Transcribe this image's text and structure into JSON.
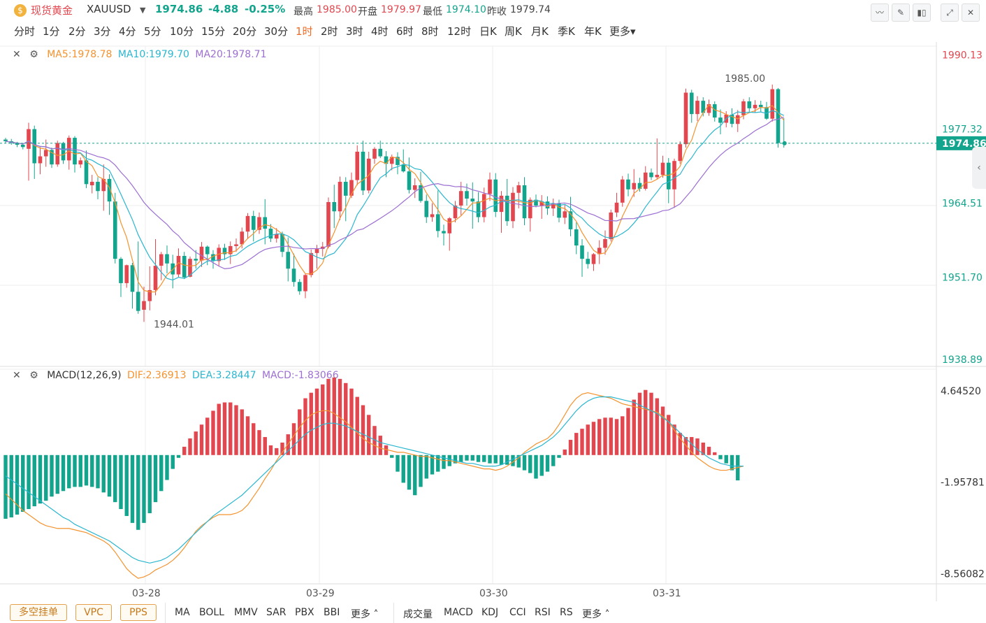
{
  "header": {
    "symbol_name": "现货黄金",
    "symbol_code": "XAUUSD",
    "price": "1974.86",
    "change": "-4.88",
    "change_pct": "-0.25%",
    "high_label": "最高",
    "high": "1985.00",
    "open_label": "开盘",
    "open": "1979.97",
    "low_label": "最低",
    "low": "1974.10",
    "prev_label": "昨收",
    "prev": "1979.74"
  },
  "periods": [
    "分时",
    "1分",
    "2分",
    "3分",
    "4分",
    "5分",
    "10分",
    "15分",
    "20分",
    "30分",
    "1时",
    "2时",
    "3时",
    "4时",
    "6时",
    "8时",
    "12时",
    "日K",
    "周K",
    "月K",
    "季K",
    "年K",
    "更多"
  ],
  "active_period": "1时",
  "main_legend": {
    "ma5": "MA5:1978.78",
    "ma10": "MA10:1979.70",
    "ma20": "MA20:1978.71"
  },
  "macd_legend": {
    "name": "MACD(12,26,9)",
    "dif": "DIF:2.36913",
    "dea": "DEA:3.28447",
    "macd": "MACD:-1.83066"
  },
  "price_axis": [
    "1990.13",
    "1977.32",
    "1964.51",
    "1951.70",
    "1938.89"
  ],
  "current_price_tag": "1974.86",
  "macd_axis": [
    "4.64520",
    "-1.95781",
    "-8.56082"
  ],
  "x_labels": [
    "03-28",
    "03-29",
    "03-30",
    "03-31"
  ],
  "annotations": {
    "high": "1985.00",
    "low": "1944.01"
  },
  "bottom": {
    "buttons": [
      "多空挂单",
      "VPC",
      "PPS"
    ],
    "main_indicators": [
      "MA",
      "BOLL",
      "MMV",
      "SAR",
      "PBX",
      "BBI",
      "更多"
    ],
    "sub_indicators": [
      "成交量",
      "MACD",
      "KDJ",
      "CCI",
      "RSI",
      "RS",
      "更多"
    ]
  },
  "colors": {
    "up": "#e2474f",
    "down": "#12a48c",
    "ma5": "#f4932f",
    "ma10": "#2bb6cf",
    "ma20": "#9c6fd1",
    "accent": "#f06a25"
  },
  "chart_data": {
    "type": "candlestick",
    "ylim": [
      1938.89,
      1990.13
    ],
    "candles": [
      [
        1975.5,
        1975.8,
        1974.9,
        1975.2
      ],
      [
        1975.2,
        1975.6,
        1974.6,
        1974.9
      ],
      [
        1974.9,
        1975.1,
        1974.2,
        1974.6
      ],
      [
        1974.6,
        1974.9,
        1973.8,
        1974.2
      ],
      [
        1973.9,
        1978.4,
        1968.4,
        1977.3
      ],
      [
        1977.3,
        1977.9,
        1968.7,
        1971.4
      ],
      [
        1971.4,
        1974.2,
        1969.5,
        1972.6
      ],
      [
        1972.6,
        1975.5,
        1970.8,
        1973.7
      ],
      [
        1973.7,
        1974.1,
        1970.6,
        1971.2
      ],
      [
        1971.2,
        1975.3,
        1970.8,
        1974.9
      ],
      [
        1974.9,
        1975.1,
        1971.3,
        1971.9
      ],
      [
        1971.9,
        1976.2,
        1970.3,
        1975.8
      ],
      [
        1975.8,
        1976.1,
        1969.8,
        1971.2
      ],
      [
        1971.2,
        1972.4,
        1970.6,
        1971.9
      ],
      [
        1971.9,
        1973.6,
        1967.1,
        1967.8
      ],
      [
        1967.6,
        1969.4,
        1966.2,
        1968.2
      ],
      [
        1968.2,
        1969.0,
        1965.2,
        1966.6
      ],
      [
        1966.6,
        1971.2,
        1963.2,
        1968.7
      ],
      [
        1968.7,
        1969.5,
        1962.5,
        1964.8
      ],
      [
        1964.8,
        1966.3,
        1954.1,
        1954.9
      ],
      [
        1954.9,
        1955.2,
        1948.3,
        1950.7
      ],
      [
        1950.7,
        1953.9,
        1949.9,
        1953.8
      ],
      [
        1953.8,
        1954.2,
        1946.3,
        1949.2
      ],
      [
        1949.2,
        1957.9,
        1945.4,
        1945.9
      ],
      [
        1946.1,
        1950.1,
        1944.0,
        1947.6
      ],
      [
        1947.6,
        1953.6,
        1946.0,
        1949.5
      ],
      [
        1949.5,
        1958.3,
        1948.6,
        1953.7
      ],
      [
        1953.7,
        1956.1,
        1951.2,
        1955.7
      ],
      [
        1955.7,
        1957.2,
        1952.4,
        1954.1
      ],
      [
        1954.1,
        1955.6,
        1949.8,
        1952.2
      ],
      [
        1952.2,
        1956.7,
        1951.7,
        1955.4
      ],
      [
        1955.4,
        1956.1,
        1951.4,
        1951.7
      ],
      [
        1951.8,
        1955.3,
        1951.7,
        1954.9
      ],
      [
        1954.9,
        1956.4,
        1953.2,
        1954.6
      ],
      [
        1954.6,
        1957.8,
        1953.5,
        1957.0
      ],
      [
        1957.0,
        1957.2,
        1953.8,
        1955.7
      ],
      [
        1955.7,
        1956.4,
        1953.2,
        1954.5
      ],
      [
        1954.5,
        1957.4,
        1953.6,
        1956.8
      ],
      [
        1956.8,
        1957.5,
        1954.7,
        1955.7
      ],
      [
        1955.7,
        1957.9,
        1954.0,
        1957.1
      ],
      [
        1957.1,
        1958.4,
        1956.1,
        1957.4
      ],
      [
        1957.4,
        1960.3,
        1956.7,
        1959.6
      ],
      [
        1959.6,
        1962.8,
        1958.3,
        1962.3
      ],
      [
        1962.3,
        1963.2,
        1957.9,
        1959.9
      ],
      [
        1959.9,
        1962.9,
        1959.2,
        1962.1
      ],
      [
        1962.1,
        1965.2,
        1957.4,
        1960.1
      ],
      [
        1960.1,
        1960.9,
        1957.8,
        1958.4
      ],
      [
        1958.4,
        1960.2,
        1957.7,
        1959.2
      ],
      [
        1959.2,
        1959.6,
        1955.2,
        1956.1
      ],
      [
        1956.1,
        1958.6,
        1951.0,
        1953.2
      ],
      [
        1953.2,
        1955.8,
        1950.1,
        1950.9
      ],
      [
        1950.9,
        1951.4,
        1948.7,
        1949.3
      ],
      [
        1949.3,
        1952.4,
        1948.1,
        1952.1
      ],
      [
        1952.1,
        1956.5,
        1951.7,
        1955.9
      ],
      [
        1955.9,
        1957.3,
        1953.2,
        1956.6
      ],
      [
        1956.6,
        1957.8,
        1955.3,
        1957.0
      ],
      [
        1957.0,
        1965.5,
        1956.7,
        1964.7
      ],
      [
        1964.7,
        1967.7,
        1960.2,
        1963.1
      ],
      [
        1963.1,
        1969.1,
        1961.6,
        1968.2
      ],
      [
        1968.2,
        1969.0,
        1961.4,
        1965.8
      ],
      [
        1965.8,
        1969.8,
        1965.4,
        1968.5
      ],
      [
        1968.5,
        1974.5,
        1967.6,
        1973.4
      ],
      [
        1973.4,
        1975.3,
        1965.9,
        1966.7
      ],
      [
        1966.7,
        1973.4,
        1966.2,
        1972.2
      ],
      [
        1972.2,
        1974.2,
        1971.3,
        1973.9
      ],
      [
        1973.9,
        1975.3,
        1972.3,
        1972.6
      ],
      [
        1972.6,
        1973.5,
        1969.0,
        1971.3
      ],
      [
        1971.3,
        1972.9,
        1970.2,
        1972.5
      ],
      [
        1972.5,
        1973.3,
        1969.5,
        1971.1
      ],
      [
        1971.1,
        1973.8,
        1969.8,
        1970.0
      ],
      [
        1970.0,
        1972.4,
        1966.2,
        1966.8
      ],
      [
        1966.8,
        1968.8,
        1965.4,
        1967.6
      ],
      [
        1967.6,
        1969.9,
        1964.6,
        1964.9
      ],
      [
        1964.9,
        1966.0,
        1961.1,
        1962.1
      ],
      [
        1962.1,
        1964.5,
        1961.3,
        1962.6
      ],
      [
        1962.6,
        1966.7,
        1958.6,
        1959.7
      ],
      [
        1959.7,
        1960.8,
        1957.2,
        1959.3
      ],
      [
        1959.3,
        1962.1,
        1956.3,
        1961.9
      ],
      [
        1961.9,
        1964.9,
        1961.2,
        1964.1
      ],
      [
        1964.1,
        1968.2,
        1962.4,
        1966.6
      ],
      [
        1966.6,
        1967.9,
        1964.1,
        1965.3
      ],
      [
        1965.3,
        1968.1,
        1960.1,
        1964.8
      ],
      [
        1964.8,
        1966.4,
        1961.2,
        1962.1
      ],
      [
        1962.1,
        1967.2,
        1961.2,
        1966.1
      ],
      [
        1966.1,
        1969.8,
        1964.9,
        1968.6
      ],
      [
        1968.6,
        1969.7,
        1962.1,
        1963.0
      ],
      [
        1963.0,
        1966.6,
        1959.4,
        1965.8
      ],
      [
        1965.8,
        1968.7,
        1960.6,
        1961.4
      ],
      [
        1961.4,
        1967.3,
        1960.2,
        1966.3
      ],
      [
        1966.3,
        1968.2,
        1963.6,
        1967.6
      ],
      [
        1967.6,
        1969.0,
        1960.7,
        1961.9
      ],
      [
        1961.9,
        1965.5,
        1959.6,
        1965.1
      ],
      [
        1965.1,
        1966.0,
        1963.8,
        1964.1
      ],
      [
        1964.1,
        1965.9,
        1961.8,
        1964.8
      ],
      [
        1964.8,
        1965.7,
        1962.5,
        1963.6
      ],
      [
        1963.6,
        1965.3,
        1962.3,
        1964.5
      ],
      [
        1964.5,
        1965.1,
        1961.2,
        1962.0
      ],
      [
        1962.0,
        1964.3,
        1960.9,
        1963.1
      ],
      [
        1963.1,
        1965.6,
        1958.8,
        1960.0
      ],
      [
        1960.0,
        1961.2,
        1955.7,
        1957.2
      ],
      [
        1957.2,
        1958.3,
        1951.8,
        1954.9
      ],
      [
        1954.9,
        1956.1,
        1953.2,
        1954.0
      ],
      [
        1954.0,
        1955.9,
        1952.8,
        1955.7
      ],
      [
        1955.7,
        1958.1,
        1954.0,
        1956.8
      ],
      [
        1956.8,
        1959.8,
        1955.6,
        1958.3
      ],
      [
        1958.3,
        1963.4,
        1957.9,
        1962.9
      ],
      [
        1962.9,
        1966.3,
        1962.1,
        1964.6
      ],
      [
        1964.6,
        1969.2,
        1963.9,
        1968.6
      ],
      [
        1968.6,
        1969.6,
        1965.7,
        1966.9
      ],
      [
        1966.9,
        1970.4,
        1965.6,
        1968.0
      ],
      [
        1968.0,
        1968.9,
        1966.5,
        1967.0
      ],
      [
        1967.0,
        1970.9,
        1966.7,
        1969.8
      ],
      [
        1969.8,
        1970.5,
        1968.5,
        1969.0
      ],
      [
        1969.0,
        1975.7,
        1968.6,
        1969.4
      ],
      [
        1969.4,
        1972.7,
        1968.9,
        1971.5
      ],
      [
        1971.5,
        1972.3,
        1964.5,
        1966.9
      ],
      [
        1966.9,
        1972.2,
        1963.7,
        1971.8
      ],
      [
        1971.8,
        1975.2,
        1971.3,
        1974.7
      ],
      [
        1974.7,
        1984.3,
        1974.1,
        1983.6
      ],
      [
        1983.6,
        1984.1,
        1978.4,
        1979.9
      ],
      [
        1979.9,
        1983.0,
        1978.7,
        1982.2
      ],
      [
        1982.2,
        1982.8,
        1979.5,
        1980.1
      ],
      [
        1980.1,
        1982.4,
        1979.6,
        1981.6
      ],
      [
        1981.6,
        1982.1,
        1978.6,
        1979.3
      ],
      [
        1979.3,
        1980.7,
        1976.4,
        1978.4
      ],
      [
        1978.4,
        1980.4,
        1977.6,
        1979.8
      ],
      [
        1979.8,
        1980.9,
        1977.6,
        1978.2
      ],
      [
        1978.2,
        1980.6,
        1976.8,
        1979.7
      ],
      [
        1979.7,
        1982.5,
        1979.0,
        1982.1
      ],
      [
        1982.1,
        1982.8,
        1980.3,
        1980.9
      ],
      [
        1980.9,
        1982.3,
        1980.2,
        1981.5
      ],
      [
        1981.5,
        1982.2,
        1980.3,
        1981.1
      ],
      [
        1981.1,
        1982.0,
        1978.9,
        1979.1
      ],
      [
        1979.1,
        1985.0,
        1978.6,
        1984.2
      ],
      [
        1984.2,
        1984.4,
        1974.1,
        1974.9
      ],
      [
        1974.9,
        1979.2,
        1974.1,
        1974.86
      ]
    ],
    "macd_hist": [
      -4.6,
      -4.5,
      -4.3,
      -4.1,
      -3.9,
      -3.7,
      -3.5,
      -3.3,
      -3.0,
      -2.8,
      -2.6,
      -2.4,
      -2.3,
      -2.3,
      -2.2,
      -2.3,
      -2.4,
      -2.7,
      -3.0,
      -3.4,
      -3.9,
      -4.4,
      -4.9,
      -5.4,
      -4.9,
      -4.2,
      -3.4,
      -2.6,
      -1.8,
      -1.0,
      -0.2,
      0.6,
      1.2,
      1.7,
      2.2,
      2.7,
      3.2,
      3.7,
      3.8,
      3.8,
      3.6,
      3.3,
      2.8,
      2.3,
      1.8,
      1.3,
      0.7,
      0.5,
      0.9,
      1.5,
      2.3,
      3.3,
      4.1,
      4.5,
      4.8,
      5.1,
      5.5,
      5.6,
      5.5,
      5.2,
      4.8,
      4.2,
      3.6,
      2.9,
      2.1,
      1.4,
      0.7,
      -0.2,
      -1.2,
      -2.0,
      -2.5,
      -2.9,
      -2.3,
      -1.7,
      -1.4,
      -1.2,
      -1.0,
      -0.8,
      -0.6,
      -0.5,
      -0.4,
      -0.4,
      -0.5,
      -0.5,
      -0.6,
      -0.6,
      -0.7,
      -0.7,
      -0.8,
      -0.9,
      -1.1,
      -1.3,
      -1.7,
      -1.5,
      -1.2,
      -0.8,
      -0.2,
      0.4,
      1.1,
      1.6,
      1.9,
      2.2,
      2.4,
      2.6,
      2.7,
      2.7,
      2.6,
      2.8,
      3.4,
      4.0,
      4.5,
      4.7,
      4.5,
      4.1,
      3.5,
      2.9,
      2.2,
      1.6,
      1.3,
      1.3,
      1.2,
      0.9,
      0.6,
      0.2,
      -0.3,
      -0.6,
      -1.1,
      -1.83066
    ],
    "dif": [
      -2.8,
      -3.2,
      -3.6,
      -4.0,
      -4.3,
      -4.6,
      -4.9,
      -5.1,
      -5.2,
      -5.3,
      -5.3,
      -5.3,
      -5.4,
      -5.5,
      -5.6,
      -5.8,
      -6.0,
      -6.2,
      -6.5,
      -7.0,
      -7.6,
      -8.2,
      -8.6,
      -8.9,
      -8.8,
      -8.6,
      -8.3,
      -8.1,
      -7.9,
      -7.6,
      -7.2,
      -6.7,
      -6.1,
      -5.5,
      -5.1,
      -4.8,
      -4.5,
      -4.3,
      -4.3,
      -4.3,
      -4.2,
      -4.0,
      -3.6,
      -3.0,
      -2.4,
      -1.7,
      -1.1,
      -0.4,
      0.2,
      0.8,
      1.4,
      2.0,
      2.5,
      2.9,
      3.1,
      3.2,
      3.2,
      3.0,
      2.7,
      2.4,
      2.0,
      1.6,
      1.2,
      0.9,
      0.7,
      0.5,
      0.4,
      0.3,
      0.2,
      0.2,
      0.1,
      0.0,
      -0.1,
      -0.1,
      -0.2,
      -0.3,
      -0.4,
      -0.4,
      -0.5,
      -0.6,
      -0.7,
      -0.8,
      -0.9,
      -1.0,
      -1.0,
      -1.1,
      -1.0,
      -0.8,
      -0.5,
      -0.2,
      0.2,
      0.5,
      0.8,
      1.0,
      1.2,
      1.6,
      2.2,
      2.9,
      3.6,
      4.1,
      4.4,
      4.5,
      4.4,
      4.3,
      4.2,
      4.1,
      3.9,
      3.7,
      3.6,
      3.5,
      3.4,
      3.3,
      3.2,
      3.1,
      2.8,
      2.4,
      1.8,
      1.2,
      0.7,
      0.2,
      -0.2,
      -0.5,
      -0.8,
      -1.0,
      -1.1,
      -1.1,
      -1.0,
      -0.9,
      -0.8,
      2.36913
    ],
    "dea": [
      -1.5,
      -1.8,
      -2.1,
      -2.4,
      -2.7,
      -3.0,
      -3.3,
      -3.6,
      -3.9,
      -4.2,
      -4.5,
      -4.7,
      -5.0,
      -5.2,
      -5.4,
      -5.6,
      -5.8,
      -6.0,
      -6.2,
      -6.5,
      -6.8,
      -7.1,
      -7.4,
      -7.6,
      -7.7,
      -7.8,
      -7.7,
      -7.6,
      -7.4,
      -7.1,
      -6.8,
      -6.4,
      -6.0,
      -5.6,
      -5.2,
      -4.8,
      -4.4,
      -4.1,
      -3.8,
      -3.5,
      -3.2,
      -2.9,
      -2.5,
      -2.1,
      -1.7,
      -1.3,
      -0.9,
      -0.5,
      -0.1,
      0.3,
      0.7,
      1.1,
      1.5,
      1.8,
      2.0,
      2.2,
      2.3,
      2.3,
      2.2,
      2.1,
      1.9,
      1.7,
      1.5,
      1.3,
      1.1,
      0.9,
      0.8,
      0.7,
      0.6,
      0.5,
      0.4,
      0.3,
      0.2,
      0.1,
      0.0,
      -0.1,
      -0.2,
      -0.3,
      -0.4,
      -0.5,
      -0.6,
      -0.6,
      -0.7,
      -0.8,
      -0.8,
      -0.8,
      -0.7,
      -0.5,
      -0.3,
      -0.1,
      0.1,
      0.3,
      0.5,
      0.7,
      1.0,
      1.3,
      1.7,
      2.2,
      2.7,
      3.2,
      3.6,
      3.9,
      4.1,
      4.2,
      4.2,
      4.2,
      4.1,
      4.0,
      3.9,
      3.8,
      3.6,
      3.4,
      3.2,
      3.0,
      2.7,
      2.4,
      2.0,
      1.6,
      1.2,
      0.8,
      0.4,
      0.1,
      -0.2,
      -0.4,
      -0.6,
      -0.7,
      -0.8,
      -0.8,
      -0.8,
      3.28447
    ]
  }
}
